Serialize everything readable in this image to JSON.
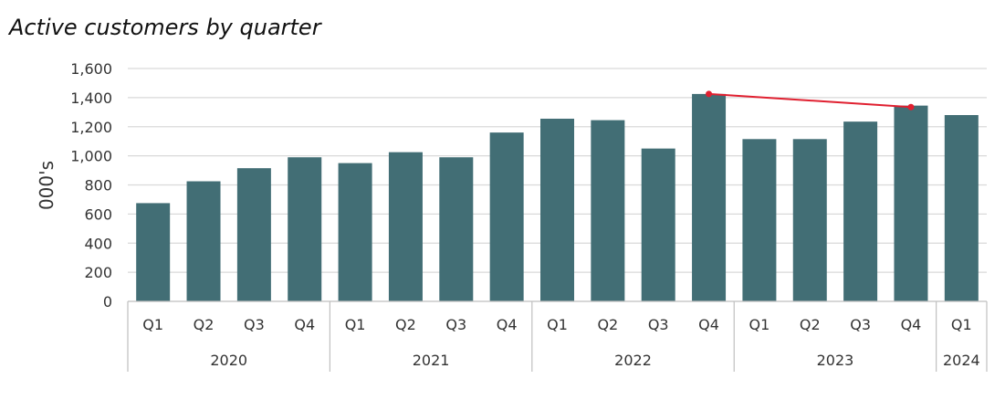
{
  "chart_data": {
    "type": "bar",
    "title": "Active customers by quarter",
    "ylabel": "000's",
    "xlabel": "",
    "ylim": [
      0,
      1600
    ],
    "yticks": [
      0,
      200,
      400,
      600,
      800,
      1000,
      1200,
      1400,
      1600
    ],
    "ytick_labels": [
      "0",
      "200",
      "400",
      "600",
      "800",
      "1,000",
      "1,200",
      "1,400",
      "1,600"
    ],
    "grid": true,
    "bar_color": "#426E75",
    "trend_color": "#E02030",
    "categories": [
      {
        "quarter": "Q1",
        "year": "2020"
      },
      {
        "quarter": "Q2",
        "year": "2020"
      },
      {
        "quarter": "Q3",
        "year": "2020"
      },
      {
        "quarter": "Q4",
        "year": "2020"
      },
      {
        "quarter": "Q1",
        "year": "2021"
      },
      {
        "quarter": "Q2",
        "year": "2021"
      },
      {
        "quarter": "Q3",
        "year": "2021"
      },
      {
        "quarter": "Q4",
        "year": "2021"
      },
      {
        "quarter": "Q1",
        "year": "2022"
      },
      {
        "quarter": "Q2",
        "year": "2022"
      },
      {
        "quarter": "Q3",
        "year": "2022"
      },
      {
        "quarter": "Q4",
        "year": "2022"
      },
      {
        "quarter": "Q1",
        "year": "2023"
      },
      {
        "quarter": "Q2",
        "year": "2023"
      },
      {
        "quarter": "Q3",
        "year": "2023"
      },
      {
        "quarter": "Q4",
        "year": "2023"
      },
      {
        "quarter": "Q1",
        "year": "2024"
      }
    ],
    "years": [
      "2020",
      "2021",
      "2022",
      "2023",
      "2024"
    ],
    "values": [
      675,
      825,
      915,
      990,
      950,
      1025,
      990,
      1160,
      1255,
      1245,
      1050,
      1425,
      1115,
      1115,
      1235,
      1345,
      1280
    ],
    "trend_line": {
      "from": {
        "quarter": "Q4",
        "year": "2022",
        "value": 1425
      },
      "to": {
        "quarter": "Q4",
        "year": "2023",
        "value": 1335
      }
    }
  }
}
